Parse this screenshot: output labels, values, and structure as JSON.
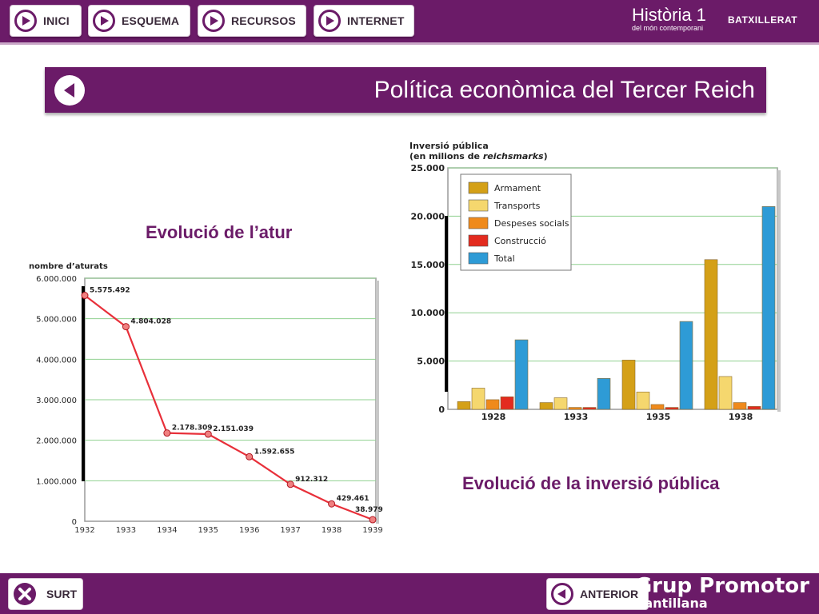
{
  "nav": {
    "buttons": [
      {
        "label": "INICI"
      },
      {
        "label": "ESQUEMA"
      },
      {
        "label": "RECURSOS"
      },
      {
        "label": "INTERNET"
      }
    ]
  },
  "brand": {
    "title": "Història 1",
    "subtitle": "del món contemporani",
    "badge": "BATXILLERAT"
  },
  "page": {
    "title": "Política econòmica del Tercer Reich"
  },
  "captions": {
    "left": "Evolució de l’atur",
    "right": "Evolució de la inversió pública"
  },
  "footer": {
    "exit_label": "SURT",
    "prev_label": "ANTERIOR",
    "logo_line1": "Grup Promotor",
    "logo_line2": "Santillana"
  },
  "colors": {
    "brand_purple": "#6b1b68",
    "line_red": "#e8303a",
    "armament": "#d4a017",
    "transports": "#f5d76e",
    "despeses": "#ef8a1c",
    "construccio": "#e32b1f",
    "total": "#2e9bd6"
  },
  "chart_data": [
    {
      "type": "line",
      "title": "",
      "ylabel": "nombre d’aturats",
      "xlabel": "",
      "x": [
        "1932",
        "1933",
        "1934",
        "1935",
        "1936",
        "1937",
        "1938",
        "1939"
      ],
      "values": [
        5575492,
        4804028,
        2178309,
        2151039,
        1592655,
        912312,
        429461,
        38979
      ],
      "value_labels": [
        "5.575.492",
        "4.804.028",
        "2.178.309",
        "2.151.039",
        "1.592.655",
        "912.312",
        "429.461",
        "38.979"
      ],
      "ylim": [
        0,
        6000000
      ],
      "yticks": [
        {
          "v": 0,
          "label": "0"
        },
        {
          "v": 1000000,
          "label": "1.000.000"
        },
        {
          "v": 2000000,
          "label": "2.000.000"
        },
        {
          "v": 3000000,
          "label": "3.000.000"
        },
        {
          "v": 4000000,
          "label": "4.000.000"
        },
        {
          "v": 5000000,
          "label": "5.000.000"
        },
        {
          "v": 6000000,
          "label": "6.000.000"
        }
      ],
      "grid": true
    },
    {
      "type": "bar",
      "title": "",
      "ylabel_line1": "Inversió pública",
      "ylabel_line2_prefix": "(en milions de ",
      "ylabel_line2_italic": "reichsmarks",
      "ylabel_line2_suffix": ")",
      "categories": [
        "1928",
        "1933",
        "1935",
        "1938"
      ],
      "series": [
        {
          "name": "Armament",
          "color": "#d4a017",
          "values": [
            800,
            700,
            5100,
            15500
          ]
        },
        {
          "name": "Transports",
          "color": "#f5d76e",
          "values": [
            2200,
            1200,
            1800,
            3400
          ]
        },
        {
          "name": "Despeses socials",
          "color": "#ef8a1c",
          "values": [
            1000,
            200,
            500,
            700
          ]
        },
        {
          "name": "Construcció",
          "color": "#e32b1f",
          "values": [
            1300,
            200,
            200,
            300
          ]
        },
        {
          "name": "Total",
          "color": "#2e9bd6",
          "values": [
            7200,
            3200,
            9100,
            21000
          ]
        }
      ],
      "ylim": [
        0,
        25000
      ],
      "yticks": [
        {
          "v": 0,
          "label": "0"
        },
        {
          "v": 5000,
          "label": "5.000"
        },
        {
          "v": 10000,
          "label": "10.000"
        },
        {
          "v": 15000,
          "label": "15.000"
        },
        {
          "v": 20000,
          "label": "20.000"
        },
        {
          "v": 25000,
          "label": "25.000"
        }
      ],
      "legend": "top-left",
      "grid": true
    }
  ]
}
